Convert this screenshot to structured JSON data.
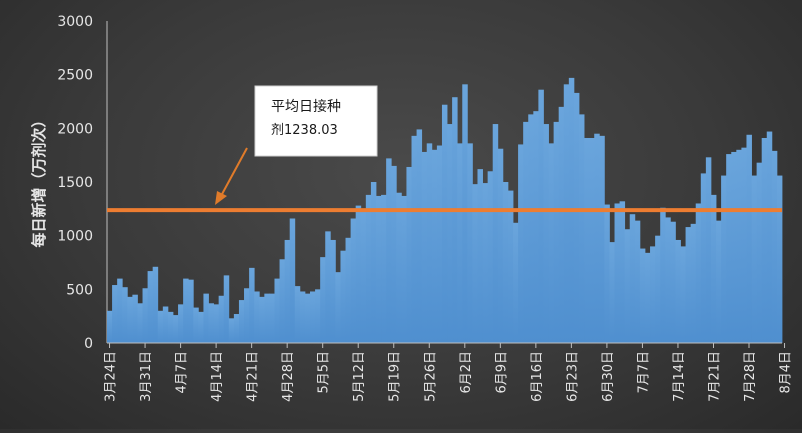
{
  "chart_data": {
    "type": "bar",
    "ylabel": "每日新增（万剂次）",
    "ylim": [
      0,
      3000
    ],
    "yticks": [
      0,
      500,
      1000,
      1500,
      2000,
      2500,
      3000
    ],
    "xtick_labels": [
      "3月24日",
      "3月31日",
      "4月7日",
      "4月14日",
      "4月21日",
      "4月28日",
      "5月5日",
      "5月12日",
      "5月19日",
      "5月26日",
      "6月2日",
      "6月9日",
      "6月16日",
      "6月23日",
      "6月30日",
      "7月7日",
      "7月14日",
      "7月21日",
      "7月28日",
      "8月4日"
    ],
    "grid": false,
    "series": [
      {
        "values": [
          300,
          540,
          600,
          520,
          430,
          450,
          370,
          510,
          670,
          710,
          300,
          340,
          290,
          260,
          360,
          600,
          590,
          330,
          290,
          460,
          370,
          360,
          440,
          630,
          230,
          270,
          400,
          510,
          700,
          480,
          430,
          460,
          460,
          600,
          780,
          960,
          1160,
          530,
          480,
          460,
          480,
          500,
          800,
          1040,
          960,
          660,
          860,
          980,
          1160,
          1280,
          1240,
          1380,
          1500,
          1370,
          1380,
          1720,
          1650,
          1400,
          1370,
          1640,
          1930,
          1990,
          1780,
          1860,
          1800,
          1840,
          2220,
          2040,
          2290,
          1860,
          2410,
          1860,
          1480,
          1620,
          1490,
          1600,
          2040,
          1810,
          1500,
          1420,
          1120,
          1850,
          2060,
          2130,
          2160,
          2360,
          2040,
          1860,
          2060,
          2200,
          2410,
          2470,
          2330,
          2130,
          1910,
          1910,
          1950,
          1930,
          1290,
          940,
          1300,
          1320,
          1060,
          1200,
          1140,
          880,
          840,
          900,
          1000,
          1260,
          1170,
          1130,
          960,
          900,
          1080,
          1110,
          1300,
          1580,
          1730,
          1380,
          1140,
          1560,
          1760,
          1780,
          1800,
          1820,
          1940,
          1560,
          1680,
          1910,
          1970,
          1790,
          1560
        ]
      }
    ],
    "colors": {
      "bar": "#5b9bd5",
      "average_line": "#ed7d31",
      "annotation_arrow": "#e07b2a"
    },
    "average_value": 1238.03,
    "annotation": {
      "line1": "平均日接种",
      "line2": "剂1238.03"
    }
  }
}
